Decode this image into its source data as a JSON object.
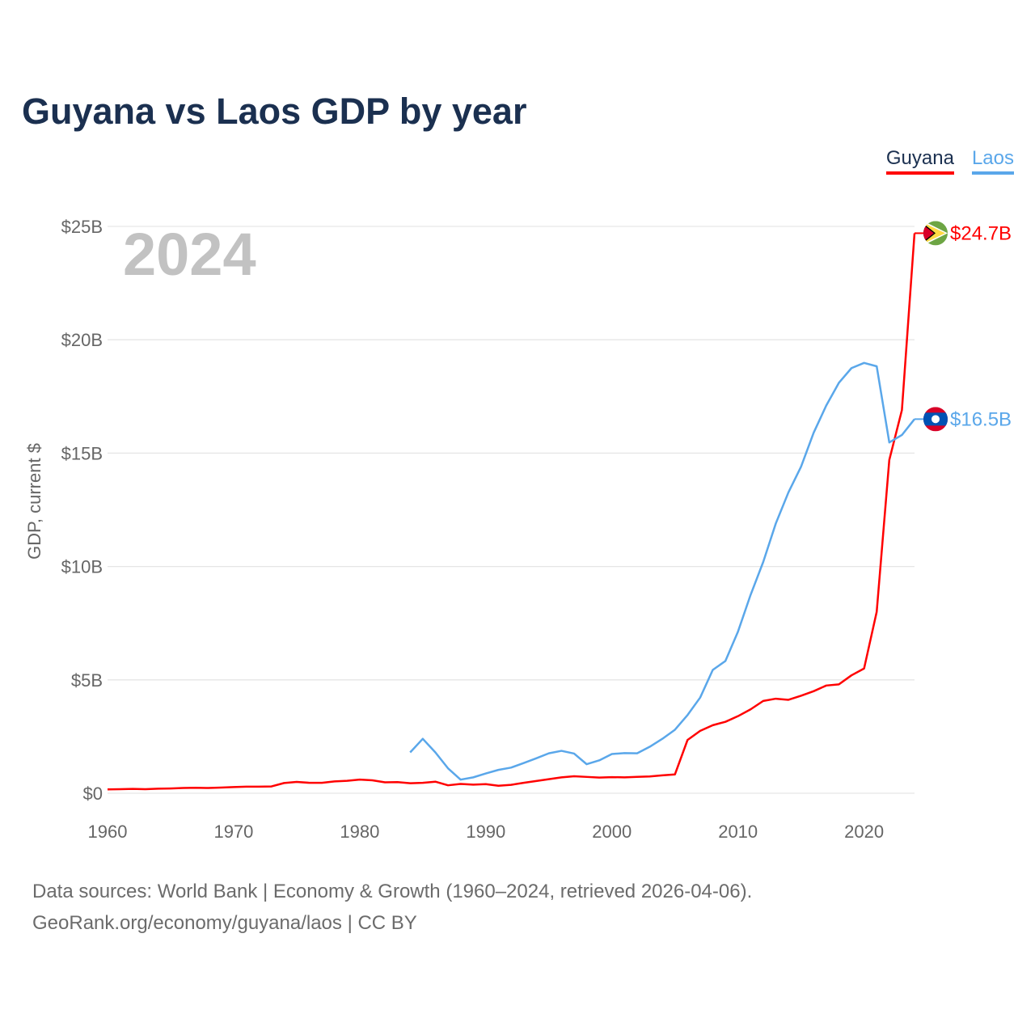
{
  "chart_data": {
    "type": "line",
    "title": "Guyana vs Laos GDP by year",
    "xlabel": "",
    "ylabel": "GDP, current $",
    "year_label": "2024",
    "xlim": [
      1960,
      2024
    ],
    "ylim": [
      0,
      25
    ],
    "x_ticks": [
      1960,
      1970,
      1980,
      1990,
      2000,
      2010,
      2020
    ],
    "x_tick_labels": [
      "1960",
      "1970",
      "1980",
      "1990",
      "2000",
      "2010",
      "2020"
    ],
    "y_ticks": [
      0,
      5,
      10,
      15,
      20,
      25
    ],
    "y_tick_labels": [
      "$0",
      "$5B",
      "$10B",
      "$15B",
      "$20B",
      "$25B"
    ],
    "grid": true,
    "legend_position": "top-right",
    "series": [
      {
        "name": "Guyana",
        "color": "#ff0000",
        "end_label": "$24.7B",
        "flag": "guyana-flag",
        "start_year": 1960,
        "values": [
          0.17,
          0.18,
          0.19,
          0.18,
          0.2,
          0.21,
          0.23,
          0.24,
          0.23,
          0.25,
          0.27,
          0.29,
          0.29,
          0.3,
          0.45,
          0.5,
          0.46,
          0.46,
          0.52,
          0.55,
          0.6,
          0.57,
          0.48,
          0.49,
          0.44,
          0.46,
          0.51,
          0.35,
          0.41,
          0.38,
          0.4,
          0.33,
          0.37,
          0.46,
          0.54,
          0.62,
          0.7,
          0.75,
          0.72,
          0.69,
          0.71,
          0.7,
          0.72,
          0.74,
          0.79,
          0.83,
          2.35,
          2.75,
          3.0,
          3.15,
          3.4,
          3.7,
          4.07,
          4.17,
          4.12,
          4.3,
          4.5,
          4.75,
          4.8,
          5.2,
          5.5,
          8.0,
          14.7,
          16.9,
          24.7
        ]
      },
      {
        "name": "Laos",
        "color": "#5aa7ea",
        "end_label": "$16.5B",
        "flag": "laos-flag",
        "start_year": 1984,
        "values": [
          1.8,
          2.4,
          1.8,
          1.1,
          0.6,
          0.7,
          0.87,
          1.03,
          1.13,
          1.33,
          1.54,
          1.76,
          1.87,
          1.75,
          1.28,
          1.45,
          1.73,
          1.77,
          1.76,
          2.05,
          2.4,
          2.8,
          3.45,
          4.22,
          5.44,
          5.83,
          7.13,
          8.75,
          10.2,
          11.9,
          13.27,
          14.4,
          15.9,
          17.1,
          18.1,
          18.75,
          18.98,
          18.83,
          15.47,
          15.8,
          16.5
        ]
      }
    ]
  },
  "footer": {
    "line1": "Data sources: World Bank | Economy & Growth (1960–2024, retrieved 2026-04-06).",
    "line2": "GeoRank.org/economy/guyana/laos | CC BY"
  }
}
